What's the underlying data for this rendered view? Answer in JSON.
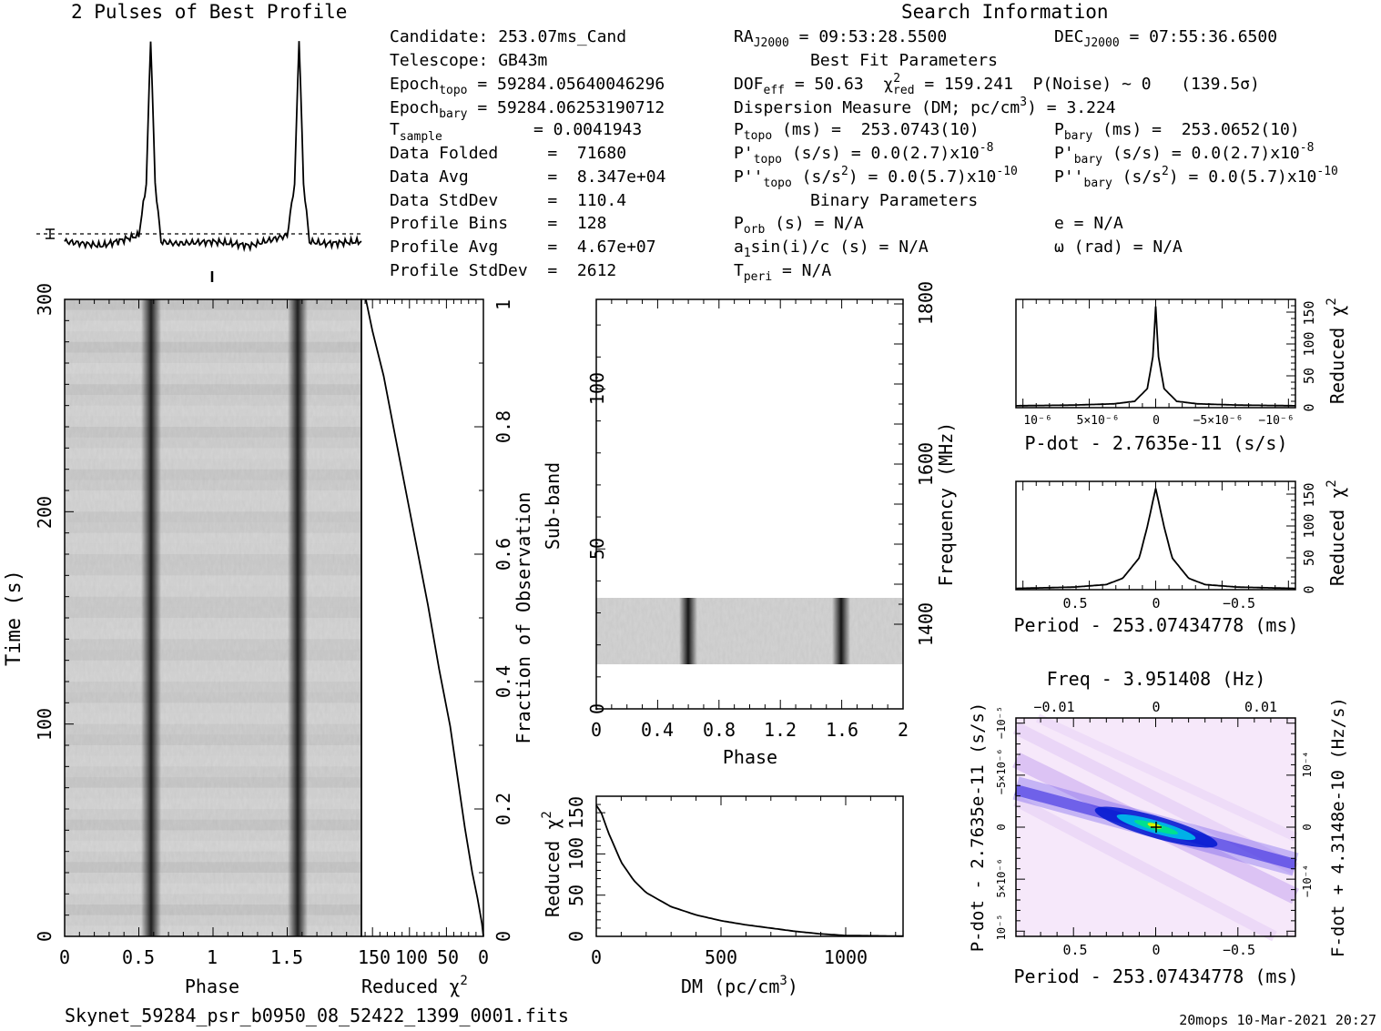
{
  "header": {
    "profile_title": "2 Pulses of Best Profile",
    "search_title": "Search Information"
  },
  "info_left": {
    "candidate": "Candidate:  253.07ms_Cand",
    "telescope": "Telescope:  GB43m",
    "epoch_topo": "Epoch",
    "epoch_topo_sub": "topo",
    "epoch_topo_val": " = 59284.05640046296",
    "epoch_bary": "Epoch",
    "epoch_bary_sub": "bary",
    "epoch_bary_val": " = 59284.06253190712",
    "tsample": "T",
    "tsample_sub": "sample",
    "tsample_val": "=  0.0041943",
    "data_folded": "Data Folded     =  71680",
    "data_avg": "Data Avg        =  8.347e+04",
    "data_stddev": "Data StdDev     =  110.4",
    "profile_bins": "Profile Bins    =  128",
    "profile_avg": "Profile Avg     =  4.67e+07",
    "profile_stddev": "Profile StdDev  =  2612"
  },
  "info_mid": {
    "ra_label": "RA",
    "ra_sub": "J2000",
    "ra_val": " = 09:53:28.5500",
    "best_fit": "Best Fit Parameters",
    "dof_label": "DOF",
    "dof_sub": "eff",
    "dof_val": " = 50.63  χ",
    "chi_sup": "2",
    "chi_sub": "red",
    "chi_val": " = 159.241  P(Noise) ~ 0   (139.5σ)",
    "dm_line": "Dispersion Measure (DM; pc/cm",
    "dm_sup": "3",
    "dm_val": ") = 3.224",
    "ptopo": "P",
    "ptopo_sub": "topo",
    "ptopo_val": " (ms) =  253.0743(10)",
    "pdtopo": "P'",
    "pdtopo_sub": "topo",
    "pdtopo_val": " (s/s) = 0.0(2.7)x10",
    "pdtopo_exp": "-8",
    "pddtopo": "P''",
    "pddtopo_sub": "topo",
    "pddtopo_val": " (s/s",
    "pddtopo_sup": "2",
    "pddtopo_val2": ") = 0.0(5.7)x10",
    "pddtopo_exp": "-10",
    "binary": "Binary Parameters",
    "porb": "P",
    "porb_sub": "orb",
    "porb_val": " (s) = N/A",
    "a1": "a",
    "a1_sub": "1",
    "a1_val": "sin(i)/c (s) = N/A",
    "tperi": "T",
    "tperi_sub": "peri",
    "tperi_val": " = N/A"
  },
  "info_right": {
    "dec_label": "DEC",
    "dec_sub": "J2000",
    "dec_val": " = 07:55:36.6500",
    "pbary": "P",
    "pbary_sub": "bary",
    "pbary_val": " (ms) =  253.0652(10)",
    "pdbary": "P'",
    "pdbary_sub": "bary",
    "pdbary_val": " (s/s) = 0.0(2.7)x10",
    "pdbary_exp": "-8",
    "pddbary": "P''",
    "pddbary_sub": "bary",
    "pddbary_val": " (s/s",
    "pddbary_sup": "2",
    "pddbary_val2": ") = 0.0(5.7)x10",
    "pddbary_exp": "-10",
    "ecc": "e = N/A",
    "omega": "ω (rad) = N/A"
  },
  "footer": {
    "filename": "Skynet_59284_psr_b0950_08_52422_1399_0001.fits",
    "stamp": "20mops 10-Mar-2021 20:27"
  },
  "chart_data": [
    {
      "type": "line",
      "id": "profile",
      "title": "2 Pulses of Best Profile",
      "x": [
        0,
        0.25,
        0.5,
        0.55,
        0.58,
        0.61,
        0.65,
        0.75,
        1.0,
        1.25,
        1.5,
        1.55,
        1.58,
        1.61,
        1.65,
        1.75,
        2.0
      ],
      "y": [
        0.02,
        0.0,
        0.05,
        0.3,
        1.0,
        0.3,
        0.02,
        0.01,
        0.02,
        0.0,
        0.05,
        0.3,
        1.0,
        0.3,
        0.02,
        0.01,
        0.02
      ]
    },
    {
      "type": "heatmap",
      "id": "time-phase",
      "xlabel": "Phase",
      "ylabel": "Time (s)",
      "xticks": [
        "0",
        "0.5",
        "1",
        "1.5"
      ],
      "yticks": [
        "0",
        "100",
        "200",
        "300"
      ],
      "xlim": [
        0,
        2
      ],
      "ylim": [
        0,
        300
      ],
      "pulse_phases": [
        0.58,
        1.58
      ]
    },
    {
      "type": "line",
      "id": "time-chi2",
      "xlabel": "Reduced χ",
      "xlabel_sup": "2",
      "xticks": [
        "150",
        "100",
        "50",
        "0"
      ],
      "right_label": "Fraction of Observation",
      "right_ticks": [
        "0",
        "0.2",
        "0.4",
        "0.6",
        "0.8",
        "1"
      ],
      "x": [
        0,
        2,
        8,
        15,
        25,
        35,
        45,
        60,
        75,
        90,
        105,
        120,
        135,
        150,
        159
      ],
      "y": [
        0,
        0.02,
        0.06,
        0.1,
        0.17,
        0.25,
        0.33,
        0.42,
        0.52,
        0.61,
        0.7,
        0.79,
        0.88,
        0.95,
        1.0
      ]
    },
    {
      "type": "heatmap",
      "id": "subband-phase",
      "xlabel": "Phase",
      "ylabel": "Sub-band",
      "right_label": "Frequency (MHz)",
      "xticks": [
        "0",
        "0.4",
        "0.8",
        "1.2",
        "1.6",
        "2"
      ],
      "yticks": [
        "0",
        "50",
        "100"
      ],
      "right_ticks": [
        "1400",
        "1600",
        "1800"
      ],
      "xlim": [
        0,
        2
      ],
      "ylim": [
        0,
        128
      ],
      "band_range": [
        14,
        35
      ],
      "pulse_phases": [
        0.6,
        1.6
      ]
    },
    {
      "type": "line",
      "id": "dm-chi2",
      "xlabel": "DM (pc/cm",
      "xlabel_sup": "3",
      "xlabel_end": ")",
      "ylabel": "Reduced χ",
      "ylabel_sup": "2",
      "xticks": [
        "0",
        "500",
        "1000"
      ],
      "yticks": [
        "0",
        "50",
        "100",
        "150"
      ],
      "xlim": [
        0,
        1230
      ],
      "ylim": [
        0,
        170
      ],
      "x": [
        0,
        20,
        50,
        100,
        150,
        200,
        300,
        400,
        500,
        600,
        700,
        800,
        900,
        1000,
        1230
      ],
      "y": [
        159,
        150,
        125,
        90,
        68,
        53,
        36,
        26,
        19,
        14,
        10,
        6,
        3,
        1,
        0.3
      ]
    },
    {
      "type": "line",
      "id": "pdot-chi2",
      "xlabel": "P-dot - 2.7635e-11 (s/s)",
      "ylabel": "Reduced χ",
      "ylabel_sup": "2",
      "xticks": [
        "10⁻⁶",
        "5×10⁻⁶",
        "0",
        "−5×10⁻⁶",
        "−10⁻⁶"
      ],
      "yticks": [
        "0",
        "50",
        "100",
        "150"
      ],
      "ylim": [
        0,
        170
      ],
      "x": [
        -1,
        -0.6,
        -0.3,
        -0.15,
        -0.06,
        -0.02,
        0,
        0.02,
        0.06,
        0.15,
        0.3,
        0.6,
        1
      ],
      "y": [
        3,
        4,
        6,
        10,
        30,
        80,
        159,
        80,
        30,
        10,
        6,
        4,
        3
      ]
    },
    {
      "type": "line",
      "id": "period-chi2",
      "xlabel": "Period - 253.07434778 (ms)",
      "ylabel": "Reduced χ",
      "ylabel_sup": "2",
      "xticks": [
        "0.5",
        "0",
        "−0.5"
      ],
      "yticks": [
        "0",
        "50",
        "100",
        "150"
      ],
      "ylim": [
        0,
        170
      ],
      "x": [
        -0.85,
        -0.5,
        -0.3,
        -0.2,
        -0.1,
        -0.05,
        0,
        0.05,
        0.1,
        0.2,
        0.3,
        0.5,
        0.85
      ],
      "y": [
        2,
        4,
        8,
        18,
        50,
        100,
        159,
        100,
        50,
        18,
        8,
        4,
        2
      ]
    },
    {
      "type": "heatmap",
      "id": "period-pdot",
      "title": "Freq - 3.951408 (Hz)",
      "xlabel": "Period - 253.07434778 (ms)",
      "ylabel": "P-dot - 2.7635e-11 (s/s)",
      "right_label": "F-dot + 4.3148e-10 (Hz/s)",
      "xticks": [
        "0.5",
        "0",
        "−0.5"
      ],
      "top_ticks": [
        "−0.01",
        "0",
        "0.01"
      ],
      "yticks": [
        "10⁻⁵",
        "5×10⁻⁶",
        "0",
        "−5×10⁻⁶",
        "−10⁻⁵"
      ],
      "right_ticks": [
        "−10⁻⁴",
        "0",
        "10⁻⁴"
      ]
    }
  ]
}
